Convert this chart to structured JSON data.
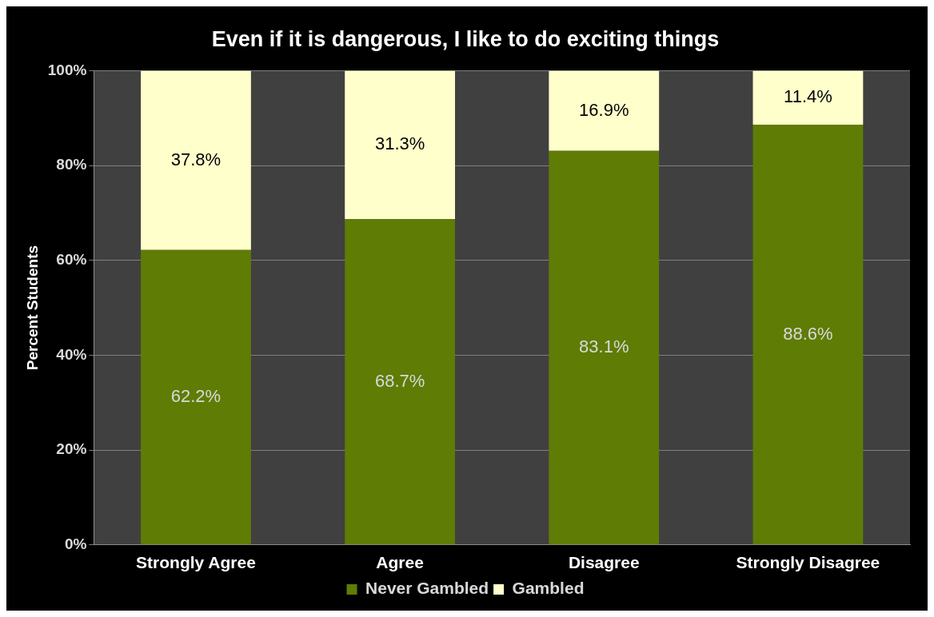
{
  "chart_data": {
    "type": "bar",
    "title": "Even if it is dangerous, I like to do exciting things",
    "ylabel": "Percent Students",
    "categories": [
      "Strongly Agree",
      "Agree",
      "Disagree",
      "Strongly Disagree"
    ],
    "series": [
      {
        "name": "Never Gambled",
        "color": "#5f7c05",
        "values": [
          62.2,
          68.7,
          83.1,
          88.6
        ],
        "value_labels": [
          "62.2%",
          "68.7%",
          "83.1%",
          "88.6%"
        ]
      },
      {
        "name": "Gambled",
        "color": "#ffffcc",
        "values": [
          37.8,
          31.3,
          16.9,
          11.4
        ],
        "value_labels": [
          "37.8%",
          "31.3%",
          "16.9%",
          "11.4%"
        ]
      }
    ],
    "stacked": true,
    "ylim": [
      0,
      100
    ],
    "yticks": [
      {
        "value": 0,
        "label": "0%"
      },
      {
        "value": 20,
        "label": "20%"
      },
      {
        "value": 40,
        "label": "40%"
      },
      {
        "value": 60,
        "label": "60%"
      },
      {
        "value": 80,
        "label": "80%"
      },
      {
        "value": 100,
        "label": "100%"
      }
    ],
    "grid": "y",
    "legend": "bottom"
  }
}
